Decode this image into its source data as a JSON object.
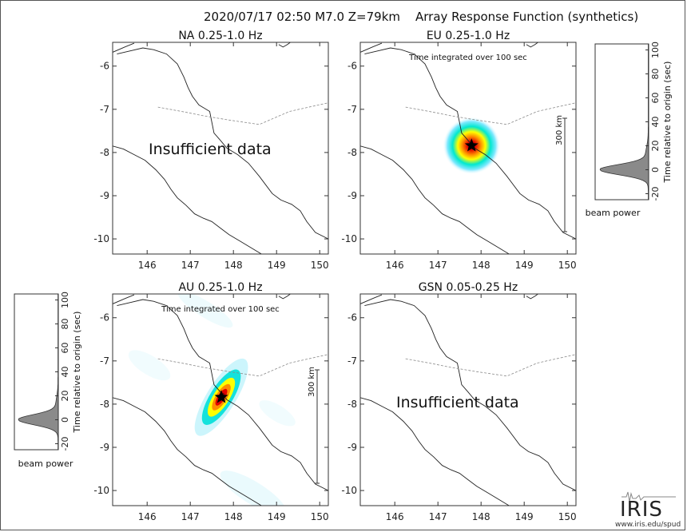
{
  "header": {
    "event": "2020/07/17 02:50  M7.0  Z=79km",
    "product": "Array Response Function (synthetics)"
  },
  "chart_data": [
    {
      "type": "heatmap",
      "title": "NA  0.25-1.0 Hz",
      "xlim": [
        145.2,
        150.2
      ],
      "ylim": [
        -10.35,
        -5.45
      ],
      "x_ticks": [
        "146",
        "147",
        "148",
        "149",
        "150"
      ],
      "y_ticks": [
        "-6",
        "-7",
        "-8",
        "-9",
        "-10"
      ],
      "annotation": "Insufficient data",
      "subtitle": "",
      "peaks": []
    },
    {
      "type": "heatmap",
      "title": "EU  0.25-1.0 Hz",
      "xlim": [
        145.2,
        150.2
      ],
      "ylim": [
        -10.35,
        -5.45
      ],
      "x_ticks": [
        "146",
        "147",
        "148",
        "149",
        "150"
      ],
      "y_ticks": [
        "-6",
        "-7",
        "-8",
        "-9",
        "-10"
      ],
      "annotation": "",
      "subtitle": "Time integrated over 100 sec",
      "scale_label": "300 km",
      "epicenter": [
        147.78,
        -7.84
      ],
      "peaks": [
        {
          "lon": 147.78,
          "lat": -7.84,
          "shape": "round"
        }
      ]
    },
    {
      "type": "heatmap",
      "title": "AU  0.25-1.0 Hz",
      "xlim": [
        145.2,
        150.2
      ],
      "ylim": [
        -10.35,
        -5.45
      ],
      "x_ticks": [
        "146",
        "147",
        "148",
        "149",
        "150"
      ],
      "y_ticks": [
        "-6",
        "-7",
        "-8",
        "-9",
        "-10"
      ],
      "annotation": "",
      "subtitle": "Time integrated over 100 sec",
      "scale_label": "300 km",
      "epicenter": [
        147.72,
        -7.84
      ],
      "peaks": [
        {
          "lon": 147.72,
          "lat": -7.84,
          "shape": "elongated"
        }
      ]
    },
    {
      "type": "heatmap",
      "title": "GSN  0.05-0.25 Hz",
      "xlim": [
        145.2,
        150.2
      ],
      "ylim": [
        -10.35,
        -5.45
      ],
      "x_ticks": [
        "146",
        "147",
        "148",
        "149",
        "150"
      ],
      "y_ticks": [
        "-6",
        "-7",
        "-8",
        "-9",
        "-10"
      ],
      "annotation": "Insufficient data",
      "subtitle": "",
      "peaks": []
    },
    {
      "type": "area",
      "name": "EU beam power",
      "xlabel": "beam power",
      "ylabel": "Time relative to origin (sec)",
      "ylim": [
        -25,
        105
      ],
      "y_ticks": [
        -20,
        0,
        20,
        40,
        60,
        80,
        100
      ],
      "peak_time": 0,
      "peak_power": 0.9
    },
    {
      "type": "area",
      "name": "AU beam power",
      "xlabel": "beam power",
      "ylabel": "Time relative to origin (sec)",
      "ylim": [
        -25,
        105
      ],
      "y_ticks": [
        -20,
        0,
        20,
        40,
        60,
        80,
        100
      ],
      "peak_time": 0,
      "peak_power": 0.9
    }
  ],
  "logo": {
    "name": "IRIS",
    "url": "www.iris.edu/spud"
  }
}
